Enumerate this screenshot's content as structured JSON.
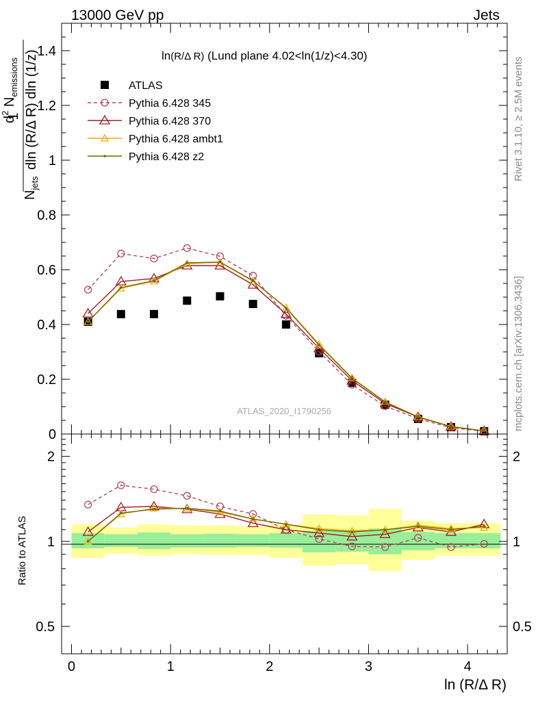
{
  "header": {
    "left": "13000 GeV pp",
    "right": "Jets"
  },
  "side_labels": {
    "rivet": "Rivet 3.1.10, ≥ 2.5M events",
    "mcplots": "mcplots.cern.ch [arXiv:1306.3436]"
  },
  "chart_data": [
    {
      "type": "line",
      "title": "ln(R/Δ R) (Lund plane 4.02<ln(1/z)<4.30)",
      "title_parts": {
        "a": "ln",
        "b": "(R/Δ R)",
        "c": " (Lund plane 4.02<ln(1/z)<4.30)"
      },
      "watermark": "ATLAS_2020_I1790256",
      "xlabel": "ln (R/Δ R)",
      "ylabel": "1/N_jets d²N_emissions / dln(R/Δ R) dln(1/z)",
      "ylabel_parts": {
        "one": "1",
        "njets": "N",
        "njets_sub": "jets",
        "dln_den": "dln (R/Δ R) dln (1/z)",
        "d2": "d",
        "d2_sup": "2",
        "nemis": " N",
        "nemis_sub": "emissions"
      },
      "xlim": [
        -0.1,
        4.4
      ],
      "ylim": [
        0,
        1.5
      ],
      "xticks": [
        "0",
        "1",
        "2",
        "3",
        "4"
      ],
      "yticks": [
        "0",
        "0.2",
        "0.4",
        "0.6",
        "0.8",
        "1",
        "1.2",
        "1.4"
      ],
      "x": [
        0.167,
        0.5,
        0.833,
        1.167,
        1.5,
        1.833,
        2.167,
        2.5,
        2.833,
        3.167,
        3.5,
        3.833,
        4.167
      ],
      "legend_position": "top-left",
      "series": [
        {
          "name": "ATLAS",
          "color": "#000000",
          "marker": "square",
          "line": "none",
          "values": [
            0.41,
            0.438,
            0.438,
            0.487,
            0.503,
            0.475,
            0.4,
            0.295,
            0.187,
            0.107,
            0.055,
            0.025,
            0.01
          ]
        },
        {
          "name": "Pythia 6.428 345",
          "color": "#b5455a",
          "marker": "circle-open",
          "line": "dashed",
          "values": [
            0.527,
            0.659,
            0.641,
            0.679,
            0.649,
            0.578,
            0.432,
            0.301,
            0.18,
            0.102,
            0.056,
            0.023,
            0.01
          ]
        },
        {
          "name": "Pythia 6.428 370",
          "color": "#a01c24",
          "marker": "triangle-open",
          "line": "solid",
          "values": [
            0.44,
            0.557,
            0.568,
            0.615,
            0.615,
            0.545,
            0.438,
            0.313,
            0.195,
            0.112,
            0.062,
            0.027,
            0.011
          ]
        },
        {
          "name": "Pythia 6.428 ambt1",
          "color": "#f0a500",
          "marker": "triangle-open-small",
          "line": "solid",
          "values": [
            0.41,
            0.532,
            0.558,
            0.622,
            0.627,
            0.558,
            0.462,
            0.328,
            0.205,
            0.118,
            0.063,
            0.028,
            0.011
          ]
        },
        {
          "name": "Pythia 6.428 z2",
          "color": "#6b6b00",
          "marker": "dot",
          "line": "solid",
          "values": [
            0.41,
            0.535,
            0.56,
            0.625,
            0.628,
            0.56,
            0.46,
            0.325,
            0.203,
            0.117,
            0.062,
            0.027,
            0.011
          ]
        }
      ]
    },
    {
      "type": "line",
      "ylabel": "Ratio to ATLAS",
      "xlabel": "ln (R/Δ R)",
      "scale": "log",
      "xlim": [
        -0.1,
        4.4
      ],
      "ylim": [
        0.4,
        2.4
      ],
      "yticks": [
        "0.5",
        "1",
        "2"
      ],
      "x": [
        0.167,
        0.5,
        0.833,
        1.167,
        1.5,
        1.833,
        2.167,
        2.5,
        2.833,
        3.167,
        3.5,
        3.833,
        4.167
      ],
      "bin_edges": [
        0,
        0.333,
        0.667,
        1.0,
        1.333,
        1.667,
        2.0,
        2.333,
        2.667,
        3.0,
        3.333,
        3.667,
        4.0,
        4.333
      ],
      "band_outer": {
        "color": "#ffff99",
        "lo": [
          0.875,
          0.905,
          0.89,
          0.9,
          0.895,
          0.895,
          0.875,
          0.82,
          0.83,
          0.785,
          0.86,
          0.89,
          0.89
        ],
        "hi": [
          1.15,
          1.12,
          1.15,
          1.14,
          1.14,
          1.13,
          1.145,
          1.245,
          1.235,
          1.305,
          1.185,
          1.16,
          1.16
        ]
      },
      "band_inner": {
        "color": "#99ee99",
        "lo": [
          0.945,
          0.955,
          0.94,
          0.95,
          0.95,
          0.955,
          0.95,
          0.915,
          0.92,
          0.9,
          0.93,
          0.945,
          0.945
        ],
        "hi": [
          1.07,
          1.06,
          1.075,
          1.06,
          1.065,
          1.06,
          1.07,
          1.09,
          1.1,
          1.11,
          1.08,
          1.07,
          1.07
        ]
      },
      "reference": 1,
      "series": [
        {
          "name": "Pythia 6.428 345",
          "color": "#b5455a",
          "marker": "circle-open",
          "line": "dashed",
          "values": [
            1.35,
            1.58,
            1.53,
            1.45,
            1.33,
            1.25,
            1.1,
            1.02,
            0.96,
            0.955,
            1.03,
            0.955,
            0.98
          ]
        },
        {
          "name": "Pythia 6.428 370",
          "color": "#a01c24",
          "marker": "triangle-open",
          "line": "solid",
          "values": [
            1.08,
            1.32,
            1.33,
            1.3,
            1.25,
            1.16,
            1.1,
            1.07,
            1.04,
            1.06,
            1.12,
            1.08,
            1.15
          ]
        },
        {
          "name": "Pythia 6.428 ambt1",
          "color": "#f0a500",
          "marker": "triangle-open-small",
          "line": "solid",
          "values": [
            1.0,
            1.25,
            1.31,
            1.31,
            1.27,
            1.2,
            1.15,
            1.11,
            1.09,
            1.1,
            1.14,
            1.11,
            1.12
          ]
        },
        {
          "name": "Pythia 6.428 z2",
          "color": "#6b6b00",
          "marker": "dot",
          "line": "solid",
          "values": [
            1.0,
            1.26,
            1.3,
            1.31,
            1.28,
            1.2,
            1.15,
            1.1,
            1.08,
            1.1,
            1.13,
            1.1,
            1.13
          ]
        }
      ]
    }
  ]
}
